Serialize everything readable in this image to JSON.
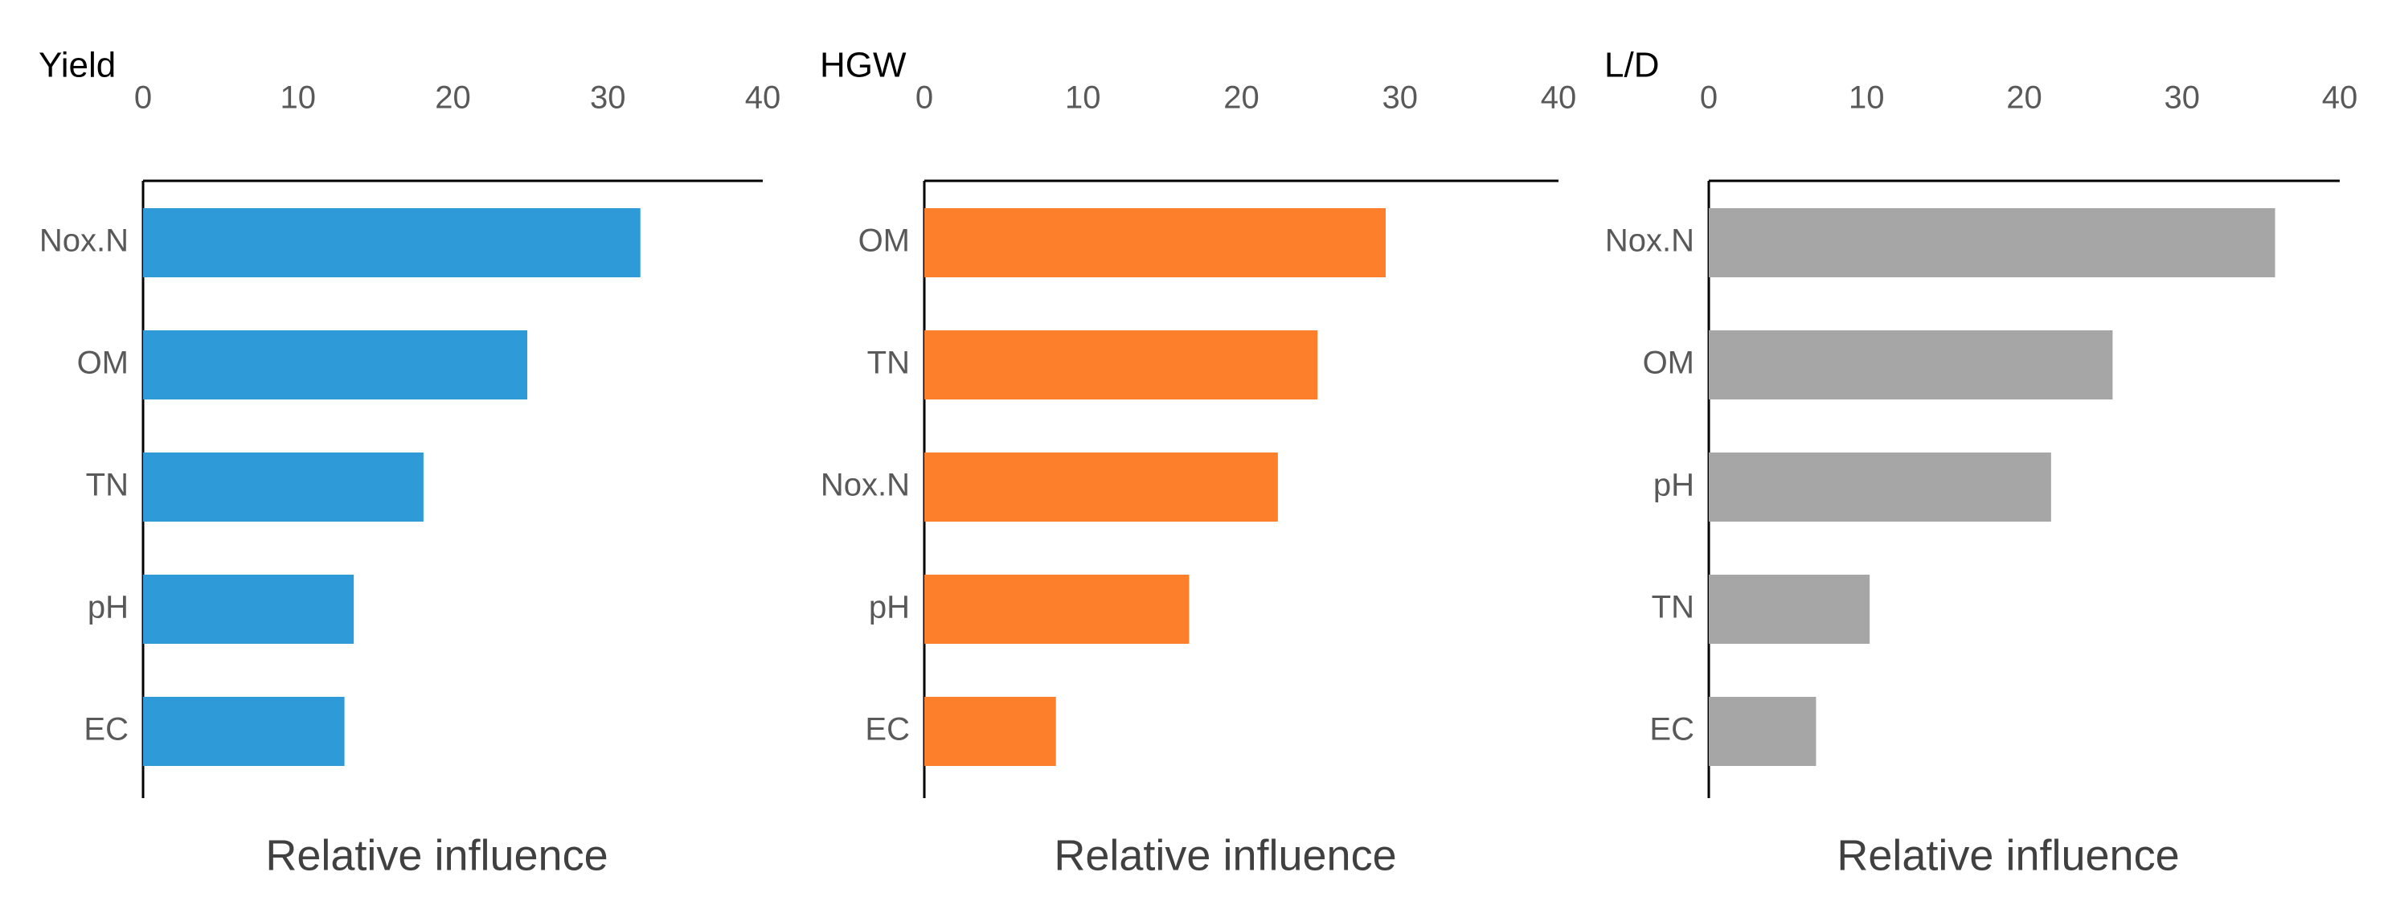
{
  "chart_data": [
    {
      "type": "bar",
      "orientation": "horizontal",
      "title": "Yield",
      "x_label": "Relative influence",
      "categories": [
        "Nox.N",
        "OM",
        "TN",
        "pH",
        "EC"
      ],
      "values": [
        32.1,
        24.8,
        18.1,
        13.6,
        13.0
      ],
      "color": "#2e9bd8",
      "xlim": [
        0,
        40
      ],
      "xticks": [
        0,
        10,
        20,
        30,
        40
      ]
    },
    {
      "type": "bar",
      "orientation": "horizontal",
      "title": "HGW",
      "x_label": "Relative influence",
      "categories": [
        "OM",
        "TN",
        "Nox.N",
        "pH",
        "EC"
      ],
      "values": [
        29.1,
        24.8,
        22.3,
        16.7,
        8.3
      ],
      "color": "#fd7f2b",
      "xlim": [
        0,
        40
      ],
      "xticks": [
        0,
        10,
        20,
        30,
        40
      ]
    },
    {
      "type": "bar",
      "orientation": "horizontal",
      "title": "L/D",
      "x_label": "Relative influence",
      "categories": [
        "Nox.N",
        "OM",
        "pH",
        "TN",
        "EC"
      ],
      "values": [
        35.9,
        25.6,
        21.7,
        10.2,
        6.8
      ],
      "color": "#a6a6a6",
      "xlim": [
        0,
        40
      ],
      "xticks": [
        0,
        10,
        20,
        30,
        40
      ]
    }
  ]
}
